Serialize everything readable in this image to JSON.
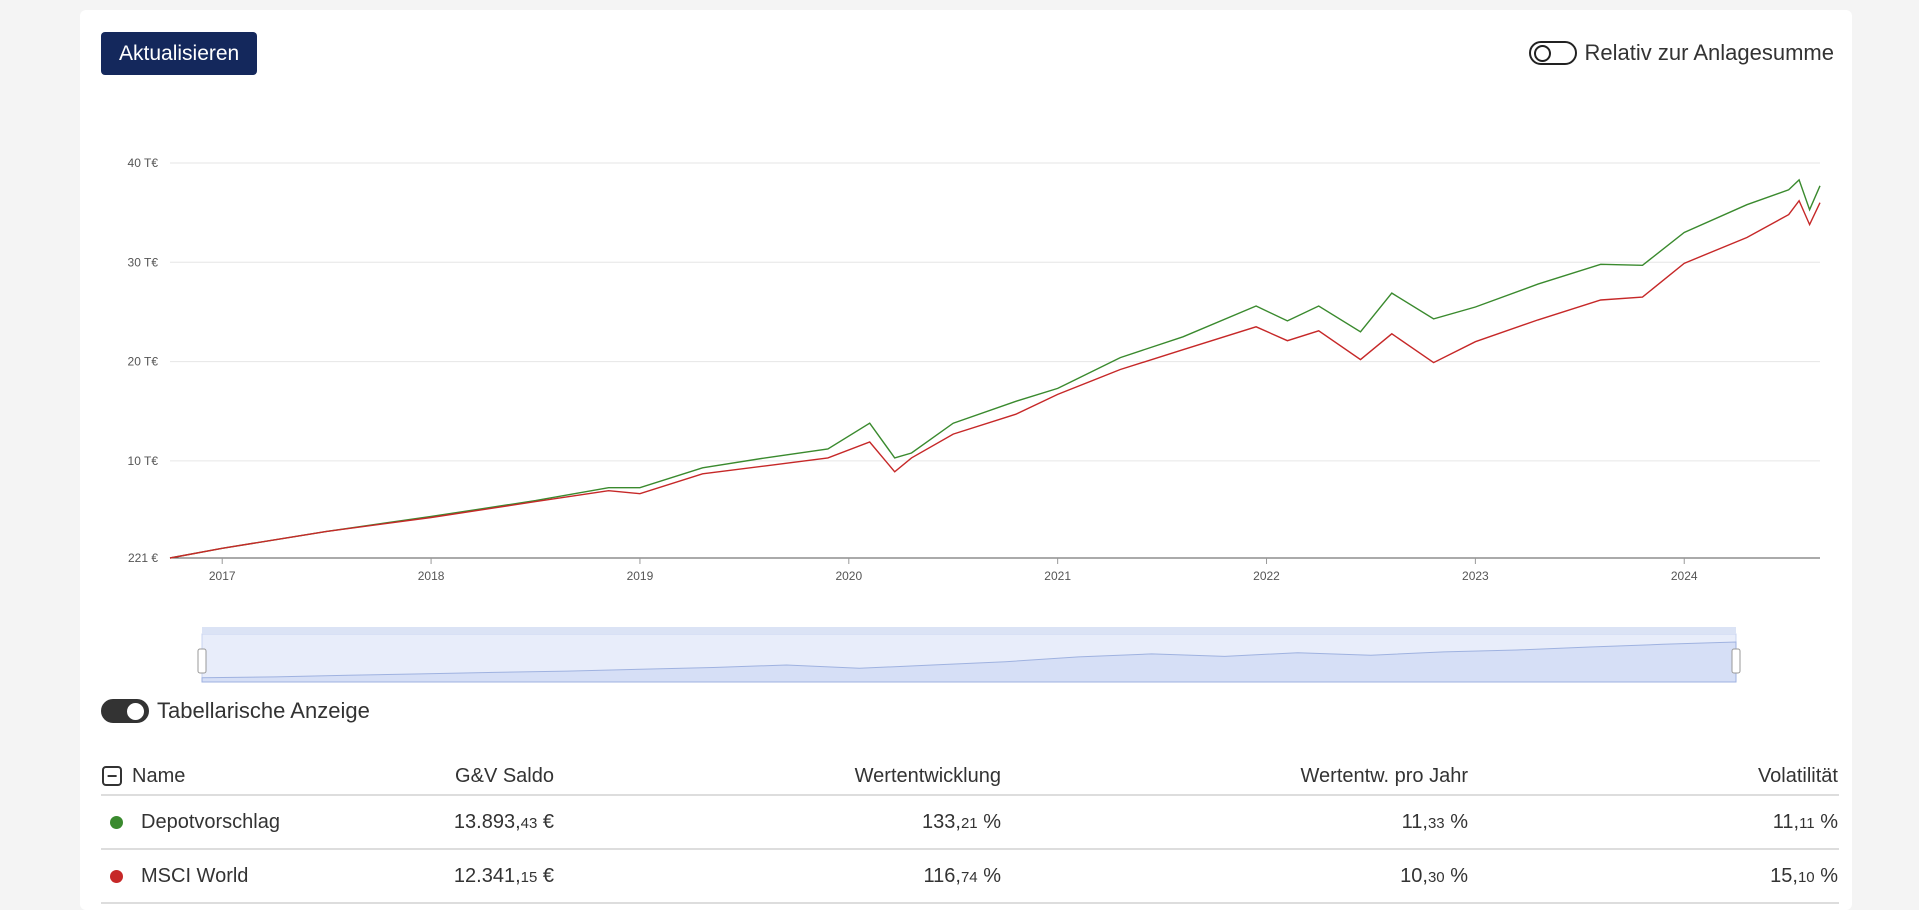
{
  "toolbar": {
    "refresh_label": "Aktualisieren"
  },
  "toggle_relative": {
    "label": "Relativ zur Anlagesumme",
    "on": false
  },
  "toggle_table": {
    "label": "Tabellarische Anzeige",
    "on": true
  },
  "table": {
    "headers": {
      "name": "Name",
      "gv": "G&V Saldo",
      "wert": "Wertentwicklung",
      "wert_jahr": "Wertentw. pro Jahr",
      "vol": "Volatilität"
    },
    "rows": [
      {
        "name": "Depotvorschlag",
        "color": "#3a8a2e",
        "gv_main": "13.893,",
        "gv_dec": "43",
        "gv_unit": " €",
        "wert_main": "133,",
        "wert_dec": "21",
        "wert_unit": " %",
        "wj_main": "11,",
        "wj_dec": "33",
        "wj_unit": " %",
        "vol_main": "11,",
        "vol_dec": "11",
        "vol_unit": " %"
      },
      {
        "name": "MSCI World",
        "color": "#c62828",
        "gv_main": "12.341,",
        "gv_dec": "15",
        "gv_unit": " €",
        "wert_main": "116,",
        "wert_dec": "74",
        "wert_unit": " %",
        "wj_main": "10,",
        "wj_dec": "30",
        "wj_unit": " %",
        "vol_main": "15,",
        "vol_dec": "10",
        "vol_unit": " %"
      }
    ]
  },
  "chart_data": {
    "type": "line",
    "y_tick_labels": [
      "221 €",
      "10 T€",
      "20 T€",
      "30 T€",
      "40 T€"
    ],
    "y_tick_values": [
      221,
      10000,
      20000,
      30000,
      40000
    ],
    "x_tick_labels": [
      "2017",
      "2018",
      "2019",
      "2020",
      "2021",
      "2022",
      "2023",
      "2024"
    ],
    "x_tick_values": [
      2017,
      2018,
      2019,
      2020,
      2021,
      2022,
      2023,
      2024
    ],
    "xlim": [
      2016.75,
      2024.65
    ],
    "ylim": [
      221,
      40000
    ],
    "grid": true,
    "series": [
      {
        "name": "Depotvorschlag",
        "color": "#3a8a2e",
        "x": [
          2016.75,
          2017.0,
          2017.5,
          2018.0,
          2018.5,
          2018.85,
          2019.0,
          2019.3,
          2019.6,
          2019.9,
          2020.1,
          2020.22,
          2020.3,
          2020.5,
          2020.8,
          2021.0,
          2021.3,
          2021.6,
          2021.95,
          2022.1,
          2022.25,
          2022.45,
          2022.6,
          2022.8,
          2023.0,
          2023.3,
          2023.6,
          2023.8,
          2024.0,
          2024.3,
          2024.5,
          2024.55,
          2024.6,
          2024.65
        ],
        "y": [
          221,
          1200,
          2900,
          4400,
          6000,
          7300,
          7300,
          9300,
          10300,
          11200,
          13800,
          10300,
          10800,
          13800,
          16000,
          17300,
          20400,
          22500,
          25600,
          24100,
          25600,
          23000,
          26900,
          24300,
          25500,
          27800,
          29800,
          29700,
          33000,
          35800,
          37300,
          38300,
          35300,
          37700
        ]
      },
      {
        "name": "MSCI World",
        "color": "#c62828",
        "x": [
          2016.75,
          2017.0,
          2017.5,
          2018.0,
          2018.5,
          2018.85,
          2019.0,
          2019.3,
          2019.6,
          2019.9,
          2020.1,
          2020.22,
          2020.3,
          2020.5,
          2020.8,
          2021.0,
          2021.3,
          2021.6,
          2021.95,
          2022.1,
          2022.25,
          2022.45,
          2022.6,
          2022.8,
          2023.0,
          2023.3,
          2023.6,
          2023.8,
          2024.0,
          2024.3,
          2024.5,
          2024.55,
          2024.6,
          2024.65
        ],
        "y": [
          221,
          1200,
          2900,
          4300,
          5900,
          7000,
          6700,
          8700,
          9500,
          10300,
          11900,
          8900,
          10300,
          12700,
          14700,
          16700,
          19200,
          21200,
          23500,
          22100,
          23100,
          20200,
          22800,
          19900,
          22000,
          24200,
          26200,
          26500,
          29900,
          32500,
          34800,
          36200,
          33800,
          36000
        ]
      }
    ],
    "navigator_series": [
      221,
      1200,
      2900,
      4400,
      6000,
      7300,
      9300,
      11200,
      13800,
      10300,
      13800,
      17300,
      22500,
      25600,
      23000,
      26900,
      24300,
      27800,
      29800,
      33000,
      35800,
      38300
    ]
  }
}
